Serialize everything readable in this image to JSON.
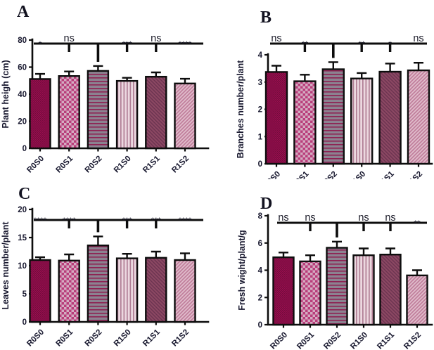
{
  "figure": {
    "description": "Four-panel bar chart figure comparing treatments",
    "background": "#ffffff"
  },
  "colors": {
    "axis": "#0d0d0d",
    "bar_outline": "#0d0d0d",
    "text": "#17172e",
    "sig_text": "#1a1a28",
    "panel_letter": "#121220"
  },
  "bar_styles": [
    {
      "name": "R0S0",
      "base": "#9a0f4f",
      "pattern": "fine-checker",
      "pattern_color": "#720b3c"
    },
    {
      "name": "R0S1",
      "base": "#b93d7a",
      "pattern": "checker",
      "pattern_color": "#d4abc1"
    },
    {
      "name": "R0S2",
      "base": "#8b8290",
      "pattern": "horizontal-lines",
      "pattern_color": "#8e2152"
    },
    {
      "name": "R1S0",
      "base": "#ecd8e0",
      "pattern": "vertical-lines",
      "pattern_color": "#b07e95"
    },
    {
      "name": "R1S1",
      "base": "#8c4863",
      "pattern": "diagonal-down",
      "pattern_color": "#6b3450"
    },
    {
      "name": "R1S2",
      "base": "#c2829e",
      "pattern": "diagonal-up",
      "pattern_color": "#e2bfce"
    }
  ],
  "chart_data": [
    {
      "panel": "A",
      "type": "bar",
      "title": "",
      "xlabel": "",
      "ylabel": "Plant heigh (cm)",
      "categories": [
        "R0S0",
        "R0S1",
        "R0S2",
        "R1S0",
        "R1S1",
        "R1S2"
      ],
      "values": [
        51.2,
        53.4,
        57.2,
        49.8,
        52.9,
        47.9
      ],
      "errors": [
        3.8,
        3.4,
        3.6,
        2.3,
        3.2,
        3.5
      ],
      "ylim": [
        0,
        80
      ],
      "yticks": [
        0,
        20,
        40,
        60,
        80
      ],
      "significance": [
        "*",
        "ns",
        "",
        "***",
        "ns",
        "****"
      ],
      "reference_index": 2,
      "grid": false,
      "legend": "none"
    },
    {
      "panel": "B",
      "type": "bar",
      "title": "",
      "xlabel": "",
      "ylabel": "Branches number/plant",
      "categories": [
        "R0S0",
        "R0S1",
        "R0S2",
        "R1S0",
        "R1S1",
        "R1S2"
      ],
      "values": [
        3.37,
        3.03,
        3.47,
        3.13,
        3.38,
        3.43
      ],
      "errors": [
        0.23,
        0.24,
        0.26,
        0.2,
        0.3,
        0.28
      ],
      "ylim": [
        0,
        4
      ],
      "yticks": [
        0,
        1,
        2,
        3,
        4
      ],
      "significance": [
        "ns",
        "**",
        "",
        "**",
        "*",
        "ns"
      ],
      "reference_index": 2,
      "grid": false,
      "legend": "none"
    },
    {
      "panel": "C",
      "type": "bar",
      "title": "",
      "xlabel": "",
      "ylabel": "Leaves number/plant",
      "categories": [
        "R0S0",
        "R0S1",
        "R0S2",
        "R1S0",
        "R1S1",
        "R1S2"
      ],
      "values": [
        11.0,
        10.9,
        13.6,
        11.3,
        11.4,
        11.0
      ],
      "errors": [
        0.5,
        1.1,
        1.6,
        0.8,
        1.1,
        1.2
      ],
      "ylim": [
        0,
        20
      ],
      "yticks": [
        0,
        5,
        10,
        15,
        20
      ],
      "significance": [
        "****",
        "****",
        "",
        "***",
        "***",
        "****"
      ],
      "reference_index": 2,
      "grid": false,
      "legend": "none"
    },
    {
      "panel": "D",
      "type": "bar",
      "title": "",
      "xlabel": "",
      "ylabel": "Fresh wight/plant/g",
      "categories": [
        "R0S0",
        "R0S1",
        "R0S2",
        "R1S0",
        "R1S1",
        "R1S2"
      ],
      "values": [
        4.95,
        4.65,
        5.65,
        5.1,
        5.15,
        3.62
      ],
      "errors": [
        0.35,
        0.45,
        0.45,
        0.5,
        0.45,
        0.38
      ],
      "ylim": [
        0,
        8
      ],
      "yticks": [
        0,
        2,
        4,
        6,
        8
      ],
      "significance": [
        "ns",
        "ns",
        "",
        "ns",
        "ns",
        "**"
      ],
      "reference_index": 2,
      "grid": false,
      "legend": "none"
    }
  ]
}
